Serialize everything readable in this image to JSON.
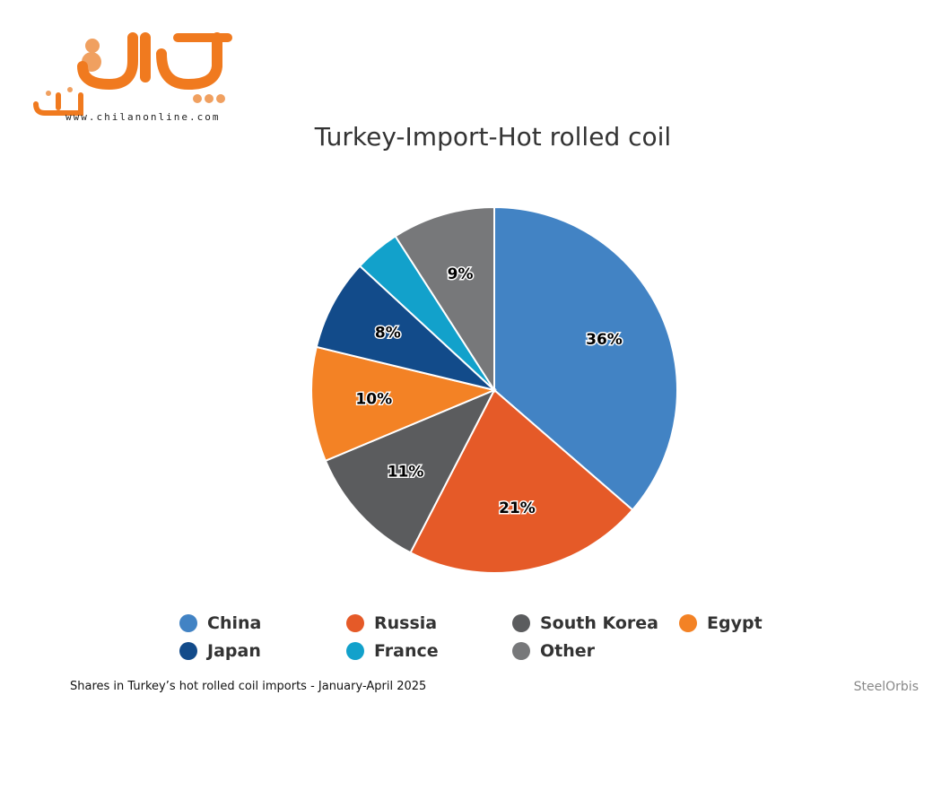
{
  "logo": {
    "url_text": "www.chilanonline.com"
  },
  "chart_data": {
    "type": "pie",
    "title": "Turkey-Import-Hot rolled coil",
    "categories": [
      "China",
      "Russia",
      "South Korea",
      "Egypt",
      "Japan",
      "France",
      "Other"
    ],
    "values": [
      36,
      21,
      11,
      10,
      8,
      4,
      9
    ],
    "data_labels": [
      "36%",
      "21%",
      "11%",
      "10%",
      "8%",
      "",
      "9%"
    ],
    "colors": [
      "#4283c4",
      "#e55a28",
      "#5b5c5e",
      "#f38225",
      "#124b8a",
      "#12a1cb",
      "#77787a"
    ],
    "legend_placement": "bottom"
  },
  "caption": "Shares in Turkey’s hot rolled coil imports - January-April 2025",
  "source": "SteelOrbis"
}
